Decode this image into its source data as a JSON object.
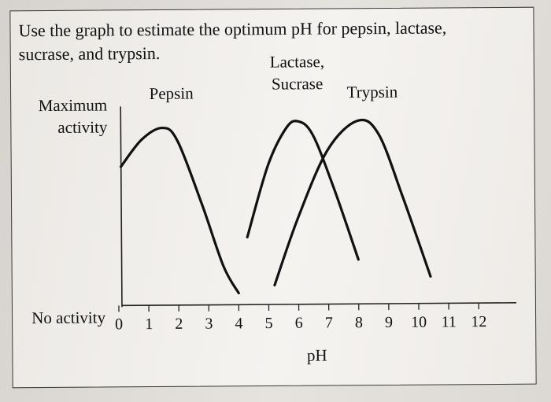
{
  "question": "Use the graph to estimate the optimum pH for pepsin, lactase, sucrase, and trypsin.",
  "chart_data": {
    "type": "line",
    "title": "",
    "xlabel": "pH",
    "ylabel_top": [
      "Maximum",
      "activity"
    ],
    "ylabel_bottom": "No activity",
    "xlim": [
      0,
      12
    ],
    "xticks": [
      0,
      1,
      2,
      3,
      4,
      5,
      6,
      7,
      8,
      9,
      10,
      11,
      12
    ],
    "ylim": [
      0,
      1
    ],
    "grid": false,
    "legend": "none",
    "series": [
      {
        "name": "Pepsin",
        "label_lines": [
          "Pepsin"
        ],
        "color": "#111111",
        "points": [
          [
            0.1,
            0.72
          ],
          [
            0.8,
            0.86
          ],
          [
            1.5,
            0.92
          ],
          [
            2.0,
            0.85
          ],
          [
            2.8,
            0.52
          ],
          [
            3.5,
            0.2
          ],
          [
            4.0,
            0.06
          ]
        ]
      },
      {
        "name": "Lactase, Sucrase",
        "label_lines": [
          "Lactase,",
          "Sucrase"
        ],
        "color": "#111111",
        "points": [
          [
            4.3,
            0.35
          ],
          [
            5.0,
            0.72
          ],
          [
            5.6,
            0.91
          ],
          [
            6.0,
            0.95
          ],
          [
            6.5,
            0.88
          ],
          [
            7.2,
            0.6
          ],
          [
            8.0,
            0.23
          ]
        ]
      },
      {
        "name": "Trypsin",
        "label_lines": [
          "Trypsin"
        ],
        "color": "#111111",
        "points": [
          [
            5.2,
            0.1
          ],
          [
            6.0,
            0.45
          ],
          [
            7.0,
            0.8
          ],
          [
            8.0,
            0.95
          ],
          [
            8.7,
            0.88
          ],
          [
            9.5,
            0.55
          ],
          [
            10.4,
            0.14
          ]
        ]
      }
    ]
  }
}
